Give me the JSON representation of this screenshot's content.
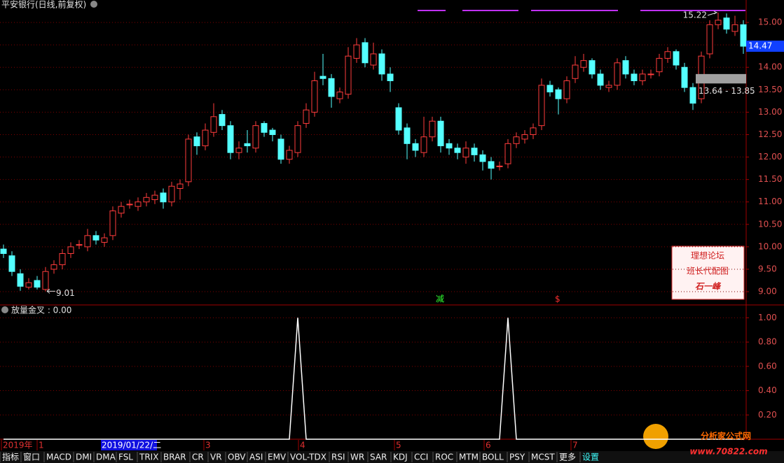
{
  "chart_data": [
    {
      "type": "candlestick",
      "title": "平安银行(日线,前复权)",
      "open": [
        9.95,
        9.8,
        9.4,
        9.1,
        9.25,
        9.05,
        9.5,
        9.6,
        9.85,
        10.05,
        10.0,
        10.25,
        10.1,
        10.25,
        10.75,
        10.95,
        10.9,
        11.0,
        11.05,
        11.2,
        11.0,
        11.3,
        11.45,
        12.45,
        12.25,
        12.55,
        12.95,
        12.7,
        12.1,
        12.3,
        12.2,
        12.75,
        12.6,
        12.4,
        11.95,
        12.1,
        12.75,
        13.0,
        13.8,
        13.75,
        13.3,
        13.4,
        14.2,
        14.55,
        14.05,
        14.3,
        13.85,
        13.1,
        12.65,
        12.3,
        12.1,
        12.45,
        12.8,
        12.3,
        12.2,
        12.0,
        12.2,
        12.05,
        11.9,
        11.8,
        11.85,
        12.3,
        12.4,
        12.5,
        12.7,
        13.6,
        13.5,
        13.3,
        13.75,
        14.0,
        14.15,
        13.85,
        13.55,
        13.6,
        14.15,
        13.85,
        13.7,
        13.85,
        13.9,
        14.2,
        14.35,
        14.0,
        13.55,
        13.3,
        14.3,
        14.95,
        15.1,
        14.8,
        14.95
      ],
      "high": [
        10.05,
        9.9,
        9.5,
        9.3,
        9.35,
        9.55,
        9.7,
        9.95,
        10.1,
        10.15,
        10.4,
        10.35,
        10.3,
        10.9,
        11.0,
        11.05,
        11.1,
        11.2,
        11.25,
        11.3,
        11.45,
        11.5,
        12.5,
        12.55,
        12.75,
        13.2,
        13.05,
        12.8,
        12.35,
        12.6,
        12.8,
        12.8,
        12.65,
        12.5,
        12.25,
        12.8,
        13.2,
        13.9,
        14.3,
        13.85,
        13.55,
        14.45,
        14.65,
        14.65,
        14.55,
        14.4,
        14.0,
        13.2,
        12.75,
        12.4,
        12.9,
        12.9,
        12.9,
        12.4,
        12.3,
        12.35,
        12.3,
        12.15,
        12.0,
        11.9,
        12.4,
        12.55,
        12.6,
        12.75,
        13.75,
        13.7,
        13.55,
        13.8,
        14.25,
        14.3,
        14.2,
        13.95,
        13.7,
        14.2,
        14.25,
        13.95,
        13.95,
        13.95,
        14.3,
        14.45,
        14.4,
        14.1,
        13.65,
        14.35,
        15.05,
        15.22,
        15.2,
        15.15,
        15.05
      ],
      "low": [
        9.75,
        9.35,
        9.02,
        9.05,
        9.05,
        9.01,
        9.4,
        9.5,
        9.75,
        9.95,
        9.9,
        10.05,
        10.0,
        10.15,
        10.65,
        10.85,
        10.8,
        10.9,
        10.95,
        10.85,
        10.9,
        11.05,
        11.35,
        12.05,
        12.15,
        12.45,
        12.6,
        11.95,
        11.95,
        12.1,
        12.1,
        12.45,
        12.35,
        11.85,
        11.85,
        12.0,
        12.65,
        12.9,
        13.6,
        13.1,
        13.2,
        13.3,
        14.1,
        14.0,
        13.95,
        13.7,
        13.45,
        12.5,
        11.95,
        12.0,
        12.0,
        12.35,
        12.1,
        12.05,
        11.95,
        11.85,
        11.9,
        11.7,
        11.5,
        11.7,
        11.75,
        12.2,
        12.3,
        12.4,
        12.6,
        13.35,
        12.95,
        13.2,
        13.65,
        13.9,
        13.75,
        13.5,
        13.45,
        13.5,
        13.75,
        13.6,
        13.6,
        13.75,
        13.8,
        14.1,
        13.95,
        13.45,
        13.05,
        13.2,
        14.2,
        14.85,
        14.75,
        14.7,
        14.3
      ],
      "close": [
        9.85,
        9.45,
        9.12,
        9.2,
        9.1,
        9.45,
        9.6,
        9.85,
        10.0,
        10.05,
        10.25,
        10.15,
        10.2,
        10.8,
        10.9,
        10.95,
        11.0,
        11.1,
        11.15,
        11.0,
        11.35,
        11.4,
        12.4,
        12.25,
        12.6,
        12.9,
        12.7,
        12.1,
        12.2,
        12.25,
        12.7,
        12.55,
        12.5,
        11.95,
        12.15,
        12.7,
        13.05,
        13.7,
        13.75,
        13.35,
        13.45,
        14.25,
        14.5,
        14.1,
        14.3,
        13.85,
        13.7,
        12.6,
        12.3,
        12.15,
        12.45,
        12.8,
        12.25,
        12.2,
        12.1,
        12.2,
        12.05,
        11.9,
        11.75,
        11.8,
        12.3,
        12.45,
        12.5,
        12.65,
        13.6,
        13.45,
        13.3,
        13.7,
        14.05,
        14.15,
        13.85,
        13.6,
        13.6,
        14.1,
        13.85,
        13.7,
        13.85,
        13.85,
        14.2,
        14.35,
        14.05,
        13.55,
        13.2,
        14.25,
        14.95,
        15.05,
        14.85,
        14.95,
        14.47
      ],
      "up_color": "#ff3c3c",
      "down_color": "#54ffff",
      "ylim": [
        8.72,
        15.5
      ],
      "yticks": [
        {
          "value": 9,
          "label": "9.00"
        },
        {
          "value": 9.5,
          "label": "9.50"
        },
        {
          "value": 10,
          "label": "10.00"
        },
        {
          "value": 10.5,
          "label": "10.50"
        },
        {
          "value": 11,
          "label": "11.00"
        },
        {
          "value": 11.5,
          "label": "11.50"
        },
        {
          "value": 12,
          "label": "12.00"
        },
        {
          "value": 12.5,
          "label": "12.50"
        },
        {
          "value": 13,
          "label": "13.00"
        },
        {
          "value": 13.5,
          "label": "13.50"
        },
        {
          "value": 14,
          "label": "14.00"
        },
        {
          "value": 14.5,
          "label": "14.50"
        },
        {
          "value": 15,
          "label": "15.00"
        }
      ],
      "grid": true,
      "band": {
        "label": "13.64 - 13.85",
        "low": 13.64,
        "high": 13.85
      },
      "signals": [
        "减",
        "$"
      ]
    },
    {
      "type": "line",
      "title": "放量金叉 : 0.00",
      "color": "#ffffff",
      "values": [
        0,
        0,
        0,
        0,
        0,
        0,
        0,
        0,
        0,
        0,
        0,
        0,
        0,
        0,
        0,
        0,
        0,
        0,
        0,
        0,
        0,
        0,
        0,
        0,
        0,
        0,
        0,
        0,
        0,
        0,
        0,
        0,
        0,
        0,
        0,
        1,
        0,
        0,
        0,
        0,
        0,
        0,
        0,
        0,
        0,
        0,
        0,
        0,
        0,
        0,
        0,
        0,
        0,
        0,
        0,
        0,
        0,
        0,
        0,
        0,
        1,
        0,
        0,
        0,
        0,
        0,
        0,
        0,
        0,
        0,
        0,
        0,
        0,
        0,
        0,
        0,
        0,
        0,
        0,
        0,
        0,
        0,
        0,
        0,
        0,
        0,
        0,
        0,
        0
      ],
      "ylim": [
        0,
        1.1
      ],
      "yticks": [
        {
          "value": 0.2,
          "label": "0.20"
        },
        {
          "value": 0.4,
          "label": "0.40"
        },
        {
          "value": 0.6,
          "label": "0.60"
        },
        {
          "value": 0.8,
          "label": "0.80"
        },
        {
          "value": 1,
          "label": "1.00"
        }
      ],
      "grid": true
    }
  ],
  "time_axis": {
    "labels": [
      "2019年",
      "1",
      "2019/01/22/二",
      "3",
      "4",
      "5",
      "6",
      "7"
    ]
  },
  "toolbar": {
    "tabs": [
      "指标",
      "窗口",
      "MACD",
      "DMI",
      "DMA",
      "FSL",
      "TRIX",
      "BRAR",
      "CR",
      "VR",
      "OBV",
      "ASI",
      "EMV",
      "VOL-TDX",
      "RSI",
      "WR",
      "SAR",
      "KDJ",
      "CCI",
      "ROC",
      "MTM",
      "BOLL",
      "PSY",
      "MCST",
      "更多",
      "设置"
    ]
  },
  "watermark": {
    "lines": [
      "理想论坛",
      "班长代配图",
      "石一峰"
    ]
  },
  "logo": {
    "name": "分析家公式网",
    "url": "www.70822.com"
  }
}
